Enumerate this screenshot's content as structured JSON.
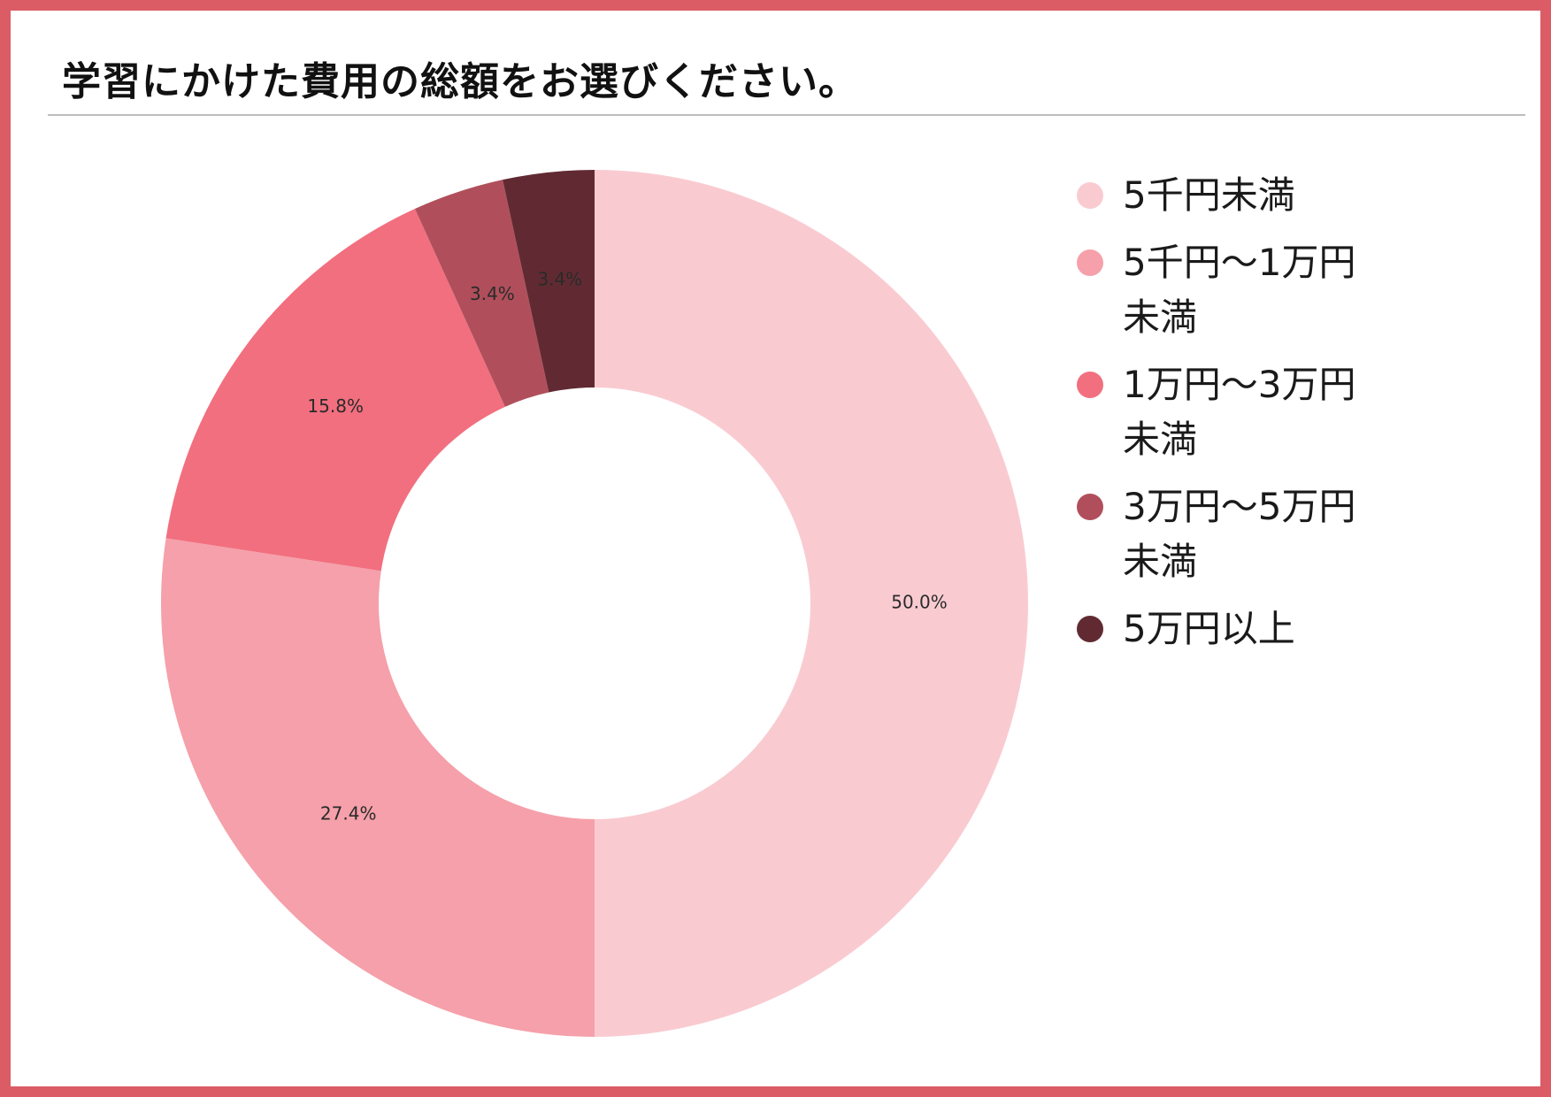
{
  "chart_data": {
    "type": "pie",
    "variant": "donut",
    "title": "学習にかけた費用の総額をお選びください。",
    "categories": [
      "5千円未満",
      "5千円〜1万円未満",
      "1万円〜3万円未満",
      "3万円〜5万円未満",
      "5万円以上"
    ],
    "values": [
      50.0,
      27.4,
      15.8,
      3.4,
      3.4
    ],
    "value_labels": [
      "50.0%",
      "27.4%",
      "15.8%",
      "3.4%",
      "3.4%"
    ],
    "colors": [
      "#f9cbd1",
      "#f5a0aa",
      "#f26f7f",
      "#b04f5b",
      "#612a32"
    ],
    "legend": "right",
    "start_angle": "12 o'clock",
    "direction": "clockwise"
  },
  "frame": {
    "border_color": "#dc5c66"
  }
}
